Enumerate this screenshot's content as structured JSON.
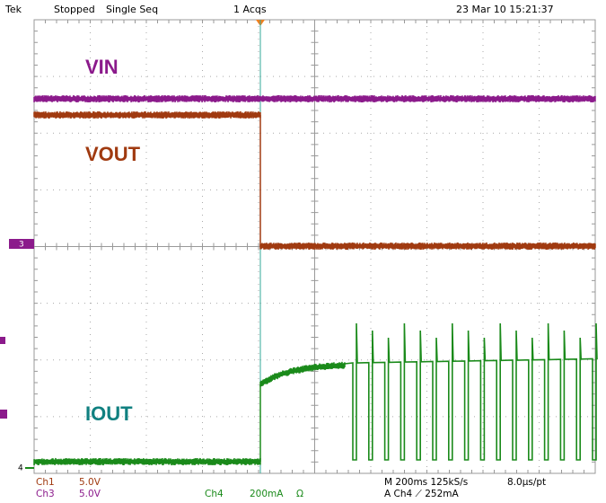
{
  "header": {
    "brand": "Tek",
    "state": "Stopped",
    "mode": "Single Seq",
    "acquisitions": "1 Acqs",
    "timestamp": "23 Mar 10 15:21:37"
  },
  "traces": {
    "vin": "VIN",
    "vout": "VOUT",
    "iout": "IOUT"
  },
  "markers": {
    "ch3": "3",
    "ch4": "4"
  },
  "footer": {
    "ch1": "Ch1",
    "ch1_scale": "5.0V",
    "ch3": "Ch3",
    "ch3_scale": "5.0V",
    "ch4": "Ch4",
    "ch4_scale": "200mA",
    "ch4_impedance": "Ω",
    "timebase": "M 200ms 125kS/s",
    "resolution": "8.0µs/pt",
    "trigger": "A  Ch4  ⟋  252mA"
  }
}
